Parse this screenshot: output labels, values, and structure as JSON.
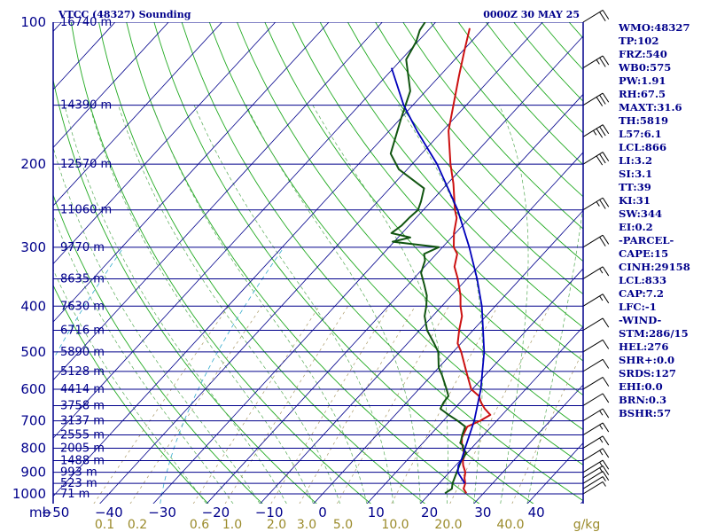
{
  "header": {
    "station": "VTCC (48327) Sounding",
    "time": "0000Z 30 MAY 25"
  },
  "indices": [
    "WMO:48327",
    "TP:102",
    "FRZ:540",
    "WB0:575",
    "PW:1.91",
    "RH:67.5",
    "MAXT:31.6",
    "TH:5819",
    "L57:6.1",
    "LCL:866",
    "LI:3.2",
    "SI:3.1",
    "TT:39",
    "KI:31",
    "SW:344",
    "EI:0.2",
    "-PARCEL-",
    "CAPE:15",
    "CINH:29158",
    "LCL:833",
    "CAP:7.2",
    "LFC:-1",
    "-WIND-",
    "STM:286/15",
    "HEL:276",
    "SHR+:0.0",
    "SRDS:127",
    "EHI:0.0",
    "BRN:0.3",
    "BSHR:57"
  ],
  "colors": {
    "isobar": "#00008b",
    "isotherm": "#00008b",
    "dry_adiabat": "#22aa22",
    "moist_adiabat": "#55aa55",
    "mixing_ratio": "#aa9966",
    "humidity": "#33aacc",
    "temperature": "#cc1111",
    "dewpoint": "#115511",
    "parcel": "#0000bb",
    "wind": "#000000"
  },
  "chart_data": {
    "type": "line",
    "title": "VTCC (48327) Sounding 0000Z 30 MAY 25",
    "xlabel": "",
    "ylabel": "mb",
    "y_scale": "log",
    "y_reversed": true,
    "ylim": [
      1050,
      100
    ],
    "xlim": [
      -50,
      50
    ],
    "pressure_ticks": [
      "100",
      "200",
      "300",
      "400",
      "500",
      "600",
      "700",
      "800",
      "900",
      "1000"
    ],
    "temperature_ticks": [
      "−50",
      "−40",
      "−30",
      "−20",
      "−10",
      "0",
      "10",
      "20",
      "30",
      "40"
    ],
    "y_unit_label": "mb",
    "mixing_ratio_ticks": [
      "0.1",
      "0.2",
      "0.6",
      "1.0",
      "2.0",
      "3.0",
      "5.0",
      "10.0",
      "20.0",
      "40.0"
    ],
    "mixing_ratio_unit": "g/kg",
    "height_labels": [
      {
        "p": 100,
        "h": "16740 m"
      },
      {
        "p": 150,
        "h": "14390 m"
      },
      {
        "p": 200,
        "h": "12570 m"
      },
      {
        "p": 250,
        "h": "11060 m"
      },
      {
        "p": 300,
        "h": "9770 m"
      },
      {
        "p": 350,
        "h": "8635 m"
      },
      {
        "p": 400,
        "h": "7630 m"
      },
      {
        "p": 450,
        "h": "6716 m"
      },
      {
        "p": 500,
        "h": "5890 m"
      },
      {
        "p": 550,
        "h": "5128 m"
      },
      {
        "p": 600,
        "h": "4414 m"
      },
      {
        "p": 650,
        "h": "3758 m"
      },
      {
        "p": 700,
        "h": "3137 m"
      },
      {
        "p": 750,
        "h": "2555 m"
      },
      {
        "p": 800,
        "h": "2005 m"
      },
      {
        "p": 850,
        "h": "1488 m"
      },
      {
        "p": 900,
        "h": "993 m"
      },
      {
        "p": 950,
        "h": "523 m"
      },
      {
        "p": 1000,
        "h": "71 m"
      }
    ],
    "series": [
      {
        "key": "temperature",
        "values": [
          [
            997,
            26.8
          ],
          [
            975,
            25.5
          ],
          [
            950,
            24.9
          ],
          [
            925,
            23.8
          ],
          [
            900,
            23
          ],
          [
            870,
            21.4
          ],
          [
            850,
            20.5
          ],
          [
            830,
            20.0
          ],
          [
            800,
            18.4
          ],
          [
            780,
            17.3
          ],
          [
            760,
            16.4
          ],
          [
            720,
            15.5
          ],
          [
            700,
            16.9
          ],
          [
            680,
            17.8
          ],
          [
            660,
            15.7
          ],
          [
            640,
            13.9
          ],
          [
            620,
            12.4
          ],
          [
            600,
            9.8
          ],
          [
            550,
            5.8
          ],
          [
            500,
            1.5
          ],
          [
            480,
            -0.6
          ],
          [
            450,
            -2.6
          ],
          [
            420,
            -4.5
          ],
          [
            400,
            -6.5
          ],
          [
            380,
            -8.3
          ],
          [
            350,
            -11.7
          ],
          [
            330,
            -14.4
          ],
          [
            310,
            -16.1
          ],
          [
            300,
            -17.9
          ],
          [
            280,
            -20.3
          ],
          [
            260,
            -22.4
          ],
          [
            250,
            -24.1
          ],
          [
            220,
            -28.9
          ],
          [
            200,
            -32.8
          ],
          [
            170,
            -38.9
          ],
          [
            150,
            -42.4
          ],
          [
            130,
            -46.4
          ],
          [
            115,
            -49.7
          ],
          [
            103,
            -52.6
          ]
        ]
      },
      {
        "key": "dewpoint",
        "values": [
          [
            997,
            22.8
          ],
          [
            975,
            23.3
          ],
          [
            950,
            22.5
          ],
          [
            900,
            21.4
          ],
          [
            870,
            20.7
          ],
          [
            850,
            20.2
          ],
          [
            820,
            19.9
          ],
          [
            800,
            18.4
          ],
          [
            790,
            18.0
          ],
          [
            780,
            17.0
          ],
          [
            770,
            16.7
          ],
          [
            750,
            16.0
          ],
          [
            720,
            15.1
          ],
          [
            700,
            12.7
          ],
          [
            680,
            10.0
          ],
          [
            660,
            7.4
          ],
          [
            640,
            6.9
          ],
          [
            620,
            6.7
          ],
          [
            600,
            5.2
          ],
          [
            560,
            1.9
          ],
          [
            540,
            0.0
          ],
          [
            500,
            -2.8
          ],
          [
            480,
            -5.0
          ],
          [
            450,
            -8.6
          ],
          [
            420,
            -11.5
          ],
          [
            400,
            -12.9
          ],
          [
            380,
            -14.6
          ],
          [
            360,
            -17.0
          ],
          [
            340,
            -19.6
          ],
          [
            320,
            -21.0
          ],
          [
            310,
            -22.3
          ],
          [
            300,
            -20.7
          ],
          [
            292,
            -30.3
          ],
          [
            286,
            -27.7
          ],
          [
            280,
            -32.0
          ],
          [
            270,
            -31.4
          ],
          [
            260,
            -31.3
          ],
          [
            250,
            -31.0
          ],
          [
            240,
            -31.9
          ],
          [
            225,
            -33.6
          ],
          [
            205,
            -41.6
          ],
          [
            190,
            -45.8
          ],
          [
            160,
            -49.9
          ],
          [
            140,
            -52.9
          ],
          [
            120,
            -59.1
          ],
          [
            110,
            -60.3
          ],
          [
            104,
            -61.6
          ],
          [
            98,
            -62.2
          ]
        ]
      },
      {
        "key": "parcel",
        "values": [
          [
            950,
            24.8
          ],
          [
            900,
            21.6
          ],
          [
            870,
            20.5
          ],
          [
            850,
            20.2
          ],
          [
            800,
            18.8
          ],
          [
            700,
            15.8
          ],
          [
            600,
            11.6
          ],
          [
            500,
            5.8
          ],
          [
            400,
            -2.5
          ],
          [
            350,
            -8.1
          ],
          [
            300,
            -15.0
          ],
          [
            250,
            -23.6
          ],
          [
            200,
            -35.3
          ],
          [
            170,
            -44.8
          ],
          [
            150,
            -51.7
          ],
          [
            125,
            -60.4
          ]
        ]
      }
    ],
    "wind_barbs": [
      {
        "p": 1000,
        "spd": 5
      },
      {
        "p": 975,
        "spd": 5
      },
      {
        "p": 950,
        "spd": 10
      },
      {
        "p": 925,
        "spd": 15
      },
      {
        "p": 900,
        "spd": 15
      },
      {
        "p": 850,
        "spd": 15
      },
      {
        "p": 800,
        "spd": 15
      },
      {
        "p": 750,
        "spd": 15
      },
      {
        "p": 700,
        "spd": 15
      },
      {
        "p": 650,
        "spd": 10
      },
      {
        "p": 600,
        "spd": 10
      },
      {
        "p": 550,
        "spd": 10
      },
      {
        "p": 500,
        "spd": 10
      },
      {
        "p": 450,
        "spd": 10
      },
      {
        "p": 400,
        "spd": 15
      },
      {
        "p": 350,
        "spd": 15
      },
      {
        "p": 300,
        "spd": 20
      },
      {
        "p": 250,
        "spd": 25
      },
      {
        "p": 200,
        "spd": 30
      },
      {
        "p": 175,
        "spd": 35
      },
      {
        "p": 150,
        "spd": 30
      },
      {
        "p": 125,
        "spd": 25
      },
      {
        "p": 100,
        "spd": 20
      }
    ]
  }
}
